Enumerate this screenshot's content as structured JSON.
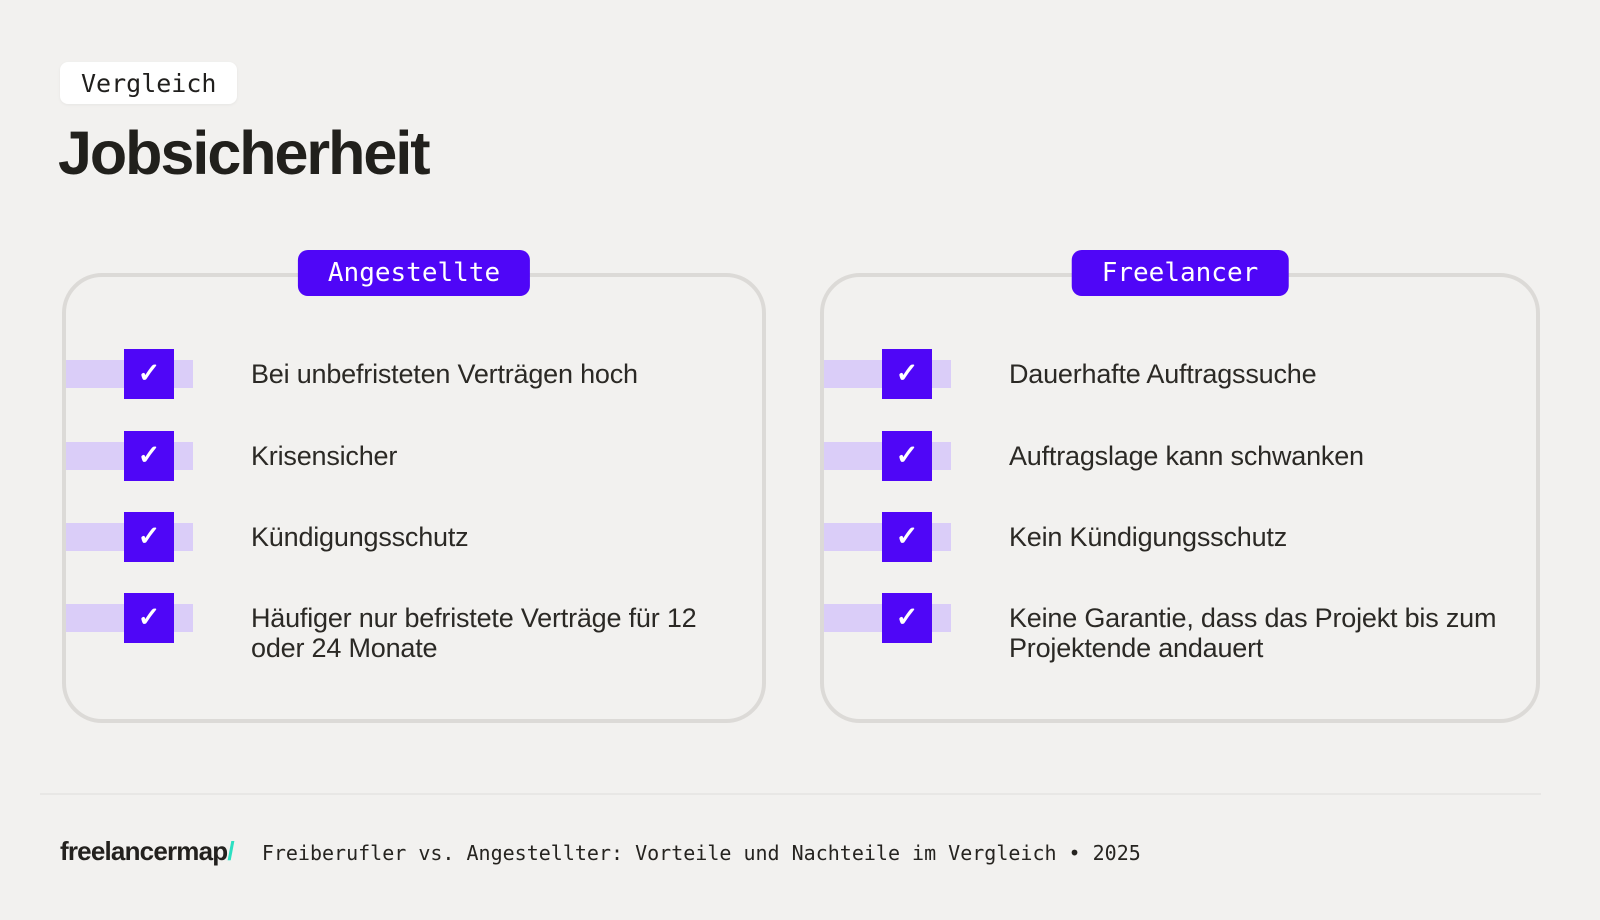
{
  "page": {
    "tag_label": "Vergleich",
    "title": "Jobsicherheit"
  },
  "colors": {
    "background": "#f2f1ef",
    "accent_purple": "#4f06f7",
    "accent_lavender": "#dacdf8",
    "card_border": "#dcdad7",
    "logo_mint": "#2ce0c2"
  },
  "glyphs": {
    "check": "✓"
  },
  "cards": [
    {
      "badge": "Angestellte",
      "items": [
        {
          "text": "Bei unbefristeten Verträgen hoch"
        },
        {
          "text": "Krisensicher"
        },
        {
          "text": "Kündigungsschutz"
        },
        {
          "text": "Häufiger nur befristete Verträge für 12 oder 24 Monate"
        }
      ]
    },
    {
      "badge": "Freelancer",
      "items": [
        {
          "text": "Dauerhafte Auftragssuche"
        },
        {
          "text": "Auftragslage kann schwanken"
        },
        {
          "text": "Kein Kündigungsschutz"
        },
        {
          "text": "Keine Garantie, dass das Projekt bis zum Projektende andauert"
        }
      ]
    }
  ],
  "footer": {
    "logo_text": "freelancermap",
    "logo_slash": "/",
    "caption": "Freiberufler vs. Angestellter: Vorteile und Nachteile im Vergleich • 2025"
  }
}
